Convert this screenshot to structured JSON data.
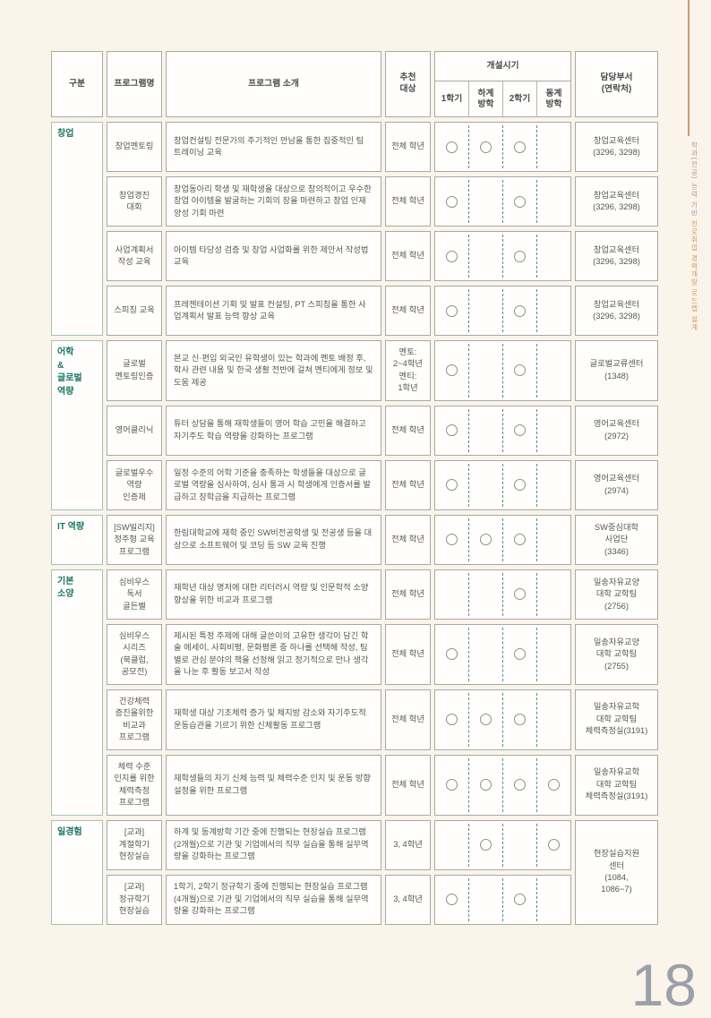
{
  "page": {
    "number": "18"
  },
  "sidebar": {
    "text_gray": "학과(전공) 능력 기반 ",
    "text_accent": "진로취업 경력개발 로드맵 설계"
  },
  "colors": {
    "accent_teal": "#1b7565",
    "group_border": "#a3c3ba",
    "dashed_line": "#4a9090",
    "accent_orange": "#d1995c",
    "page_number_gray": "#9aa1a8"
  },
  "table": {
    "headers": {
      "category": "구분",
      "program": "프로그램명",
      "intro": "프로그램 소개",
      "target": "추천\n대상",
      "schedule_title": "개설시기",
      "schedule_cols": [
        "1학기",
        "하계\n방학",
        "2학기",
        "동계\n방학"
      ],
      "dept": "담당부서\n(연락처)"
    },
    "groups": [
      {
        "label": "창업",
        "rows": [
          {
            "name": "창업멘토링",
            "intro": "창업컨설팅 전문가의 주기적인 만남을 통한 집중적인 팀 트레이닝 교육",
            "target": "전체 학년",
            "schedule": [
              1,
              1,
              1,
              0
            ],
            "dept": "창업교육센터\n(3296, 3298)"
          },
          {
            "name": "창업경진\n대회",
            "intro": "창업동아리 학생 및 재학생을 대상으로 창의적이고 우수한 창업 아이템을 발굴하는 기회의 장을 마련하고 창업 인재 양성 기회 마련",
            "target": "전체 학년",
            "schedule": [
              1,
              0,
              1,
              0
            ],
            "dept": "창업교육센터\n(3296, 3298)"
          },
          {
            "name": "사업계획서\n작성 교육",
            "intro": "아이템 타당성 검증 및 창업 사업화를 위한 제안서 작성법 교육",
            "target": "전체 학년",
            "schedule": [
              1,
              0,
              1,
              0
            ],
            "dept": "창업교육센터\n(3296, 3298)"
          },
          {
            "name": "스피칭 교육",
            "intro": "프레젠테이션 기획 및 발표 컨설팅, PT 스피칭을 통한 사업계획서 발표 능력 향상 교육",
            "target": "전체 학년",
            "schedule": [
              1,
              0,
              1,
              0
            ],
            "dept": "창업교육센터\n(3296, 3298)"
          }
        ]
      },
      {
        "label": "어학\n&\n글로벌\n역량",
        "rows": [
          {
            "name": "글로벌\n멘토링인증",
            "intro": "본교 신·편입 외국인 유학생이 있는 학과에 멘토 배정 후, 학사 관련 내용 및 한국 생활 전반에 걸쳐 멘티에게 정보 및 도움 제공",
            "target": "멘토:\n2~4학년\n멘티:\n1학년",
            "schedule": [
              1,
              0,
              1,
              0
            ],
            "dept": "글로벌교류센터\n(1348)"
          },
          {
            "name": "영어클리닉",
            "intro": "튜터 상담을 통해 재학생들이 영어 학습 고민을 해결하고 자기주도 학습 역량을 강화하는 프로그램",
            "target": "전체 학년",
            "schedule": [
              1,
              0,
              1,
              0
            ],
            "dept": "영어교육센터\n(2972)"
          },
          {
            "name": "글로벌우수\n역량\n인증제",
            "intro": "일정 수준의 어학 기준을 충족하는 학생들을 대상으로 글로벌 역량을 심사하여, 심사 통과 시 학생에게 인증서를 발급하고 장학금을 지급하는 프로그램",
            "target": "전체 학년",
            "schedule": [
              1,
              0,
              1,
              0
            ],
            "dept": "영어교육센터\n(2974)"
          }
        ]
      },
      {
        "label": "IT 역량",
        "rows": [
          {
            "name": "[SW빌리지]\n정주형 교육\n프로그램",
            "intro": "한림대학교에 재학 중인 SW비전공학생 및 전공생 등을 대상으로 소프트웨어 및 코딩 등 SW 교육 진행",
            "target": "전체 학년",
            "schedule": [
              1,
              1,
              1,
              0
            ],
            "dept": "SW중심대학\n사업단\n(3346)"
          }
        ]
      },
      {
        "label": "기본\n소양",
        "rows": [
          {
            "name": "심비우스\n독서\n골든벨",
            "intro": "재학년 대상 명저에 대한 리터러시 역량 및 인문학적 소양 향상을 위한 비교과 프로그램",
            "target": "전체 학년",
            "schedule": [
              0,
              0,
              1,
              0
            ],
            "dept": "일송자유교양\n대학 교학팀\n(2756)"
          },
          {
            "name": "심비우스\n시리즈\n(북클럽,\n공모전)",
            "intro": "제시된 특정 주제에 대해 글쓴이의 고유한 생각이 담긴 학술 에세이, 사회비평, 문화평론 중 하나를 선택해 작성, 팀별로 관심 분야의 책을 선정해 읽고 정기적으로 만나 생각을 나눈 후 활동 보고서 작성",
            "target": "전체 학년",
            "schedule": [
              1,
              0,
              1,
              0
            ],
            "dept": "일송자유교양\n대학 교학팀\n(2755)"
          },
          {
            "name": "건강체력\n증진을위한\n비교과\n프로그램",
            "intro": "재학생 대상 기초체력 증가 및 체지방 감소와 자기주도적 운동습관을 기르기 위한 신체활동 프로그램",
            "target": "전체 학년",
            "schedule": [
              1,
              1,
              1,
              0
            ],
            "dept": "일송자유교학\n대학 교학팀\n체력측정실(3191)"
          },
          {
            "name": "체력 수준\n인지를 위한\n체력측정\n프로그램",
            "intro": "재학생들의 자기 신체 능력 및 체력수준 인지 및 운동 방향 설정을 위한 프로그램",
            "target": "전체 학년",
            "schedule": [
              1,
              1,
              1,
              1
            ],
            "dept": "일송자유교학\n대학 교학팀\n체력측정실(3191)"
          }
        ]
      },
      {
        "label": "일경험",
        "dept_merged": true,
        "dept": "현장실습지원\n센터\n(1084,\n1086~7)",
        "rows": [
          {
            "name": "[교과]\n계절학기\n현장실습",
            "intro": "하계 및 동계방학 기간 중에 진행되는 현장실습 프로그램(2개월)으로 기관 및 기업에서의 직무 실습을 통해 실무역량을 강화하는 프로그램",
            "target": "3, 4학년",
            "schedule": [
              0,
              1,
              0,
              1
            ]
          },
          {
            "name": "[교과]\n정규학기\n현장실습",
            "intro": "1학기, 2학기 정규학기 중에 진행되는 현장실습 프로그램(4개월)으로 기관 및 기업에서의 직무 실습을 통해 실무역량을 강화하는 프로그램",
            "target": "3, 4학년",
            "schedule": [
              1,
              0,
              1,
              0
            ]
          }
        ]
      }
    ]
  }
}
